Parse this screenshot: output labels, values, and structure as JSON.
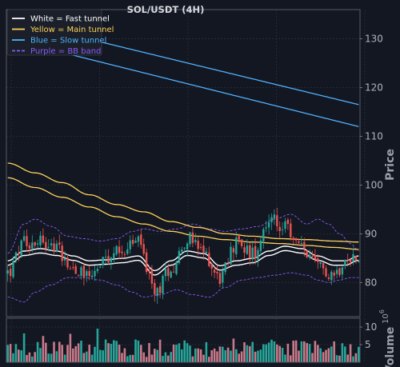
{
  "chart_data": {
    "type": "candlestick",
    "title": "SOL/USDT (4H)",
    "ylabel": "Price",
    "volume_label": "Volume",
    "volume_exponent": "6",
    "ylim": [
      73,
      136
    ],
    "volume_ylim": [
      0,
      12.5
    ],
    "yticks": [
      "80",
      "90",
      "100",
      "110",
      "120",
      "130"
    ],
    "volume_ticks": [
      "5",
      "10"
    ],
    "legend": [
      {
        "label": "White = Fast tunnel",
        "color": "#ffffff",
        "style": "solid"
      },
      {
        "label": "Yellow = Main tunnel",
        "color": "#ffd25a",
        "style": "solid"
      },
      {
        "label": "Blue = Slow tunnel",
        "color": "#4fb3ff",
        "style": "solid"
      },
      {
        "label": "Purple = BB band",
        "color": "#8a5cf6",
        "style": "dashed"
      }
    ],
    "colors": {
      "up": "#26a69a",
      "down": "#ef5350",
      "vol_up": "#26a69a",
      "vol_down": "#c97a8a",
      "fast": "#ffffff",
      "main": "#ffd25a",
      "slow": "#4fb3ff",
      "bb": "#8a5cf6",
      "grid": "#2a2f3a",
      "background": "#131722"
    },
    "num_candles": 130,
    "anchors": [
      [
        0,
        82,
        84
      ],
      [
        6,
        88,
        86
      ],
      [
        12,
        89,
        86.5
      ],
      [
        18,
        87,
        86
      ],
      [
        24,
        83,
        85
      ],
      [
        30,
        82,
        84
      ],
      [
        36,
        84,
        84.2
      ],
      [
        42,
        87,
        84.5
      ],
      [
        48,
        88.5,
        85
      ],
      [
        54,
        78,
        82
      ],
      [
        60,
        83,
        84
      ],
      [
        66,
        89,
        86
      ],
      [
        72,
        86,
        85.5
      ],
      [
        78,
        81,
        83
      ],
      [
        84,
        88,
        84
      ],
      [
        90,
        86,
        84.5
      ],
      [
        96,
        93,
        86
      ],
      [
        102,
        91,
        87
      ],
      [
        108,
        87,
        86.5
      ],
      [
        114,
        83,
        85
      ],
      [
        120,
        82,
        84
      ],
      [
        124,
        84,
        84
      ],
      [
        129,
        86,
        85
      ]
    ],
    "slow_tunnel": {
      "x": [
        0,
        129
      ],
      "upper": [
        134,
        116.5
      ],
      "lower": [
        130,
        112
      ]
    },
    "main_tunnel": {
      "x": [
        0,
        10,
        20,
        30,
        40,
        50,
        60,
        70,
        80,
        90,
        100,
        110,
        120,
        129
      ],
      "upper": [
        104.5,
        102.5,
        100.5,
        98,
        96,
        94.5,
        92.5,
        91.3,
        90,
        89.5,
        89,
        88.8,
        88.5,
        88.3
      ],
      "lower": [
        101.5,
        99.5,
        97.5,
        95.5,
        93.5,
        92,
        90.5,
        89.5,
        88.8,
        88.3,
        88,
        87.6,
        87.2,
        86.8
      ]
    },
    "bb_band": {
      "x": [
        0,
        6,
        10,
        16,
        22,
        28,
        34,
        40,
        46,
        50,
        56,
        62,
        68,
        74,
        80,
        86,
        92,
        98,
        104,
        110,
        114,
        118,
        122,
        126,
        129
      ],
      "upper": [
        86,
        92,
        93,
        91.5,
        89.5,
        89,
        88.5,
        89,
        90.5,
        91,
        90.5,
        91,
        92,
        91,
        90.5,
        91,
        91.5,
        93,
        94,
        92,
        93,
        92,
        90,
        88,
        86.5
      ],
      "lower": [
        77,
        76,
        78,
        79.5,
        81,
        81,
        80.5,
        79.5,
        78,
        77,
        77.5,
        78.5,
        77.5,
        77,
        79,
        80.5,
        81,
        81.5,
        82,
        81.5,
        80.5,
        80,
        80.5,
        81,
        81
      ]
    }
  }
}
